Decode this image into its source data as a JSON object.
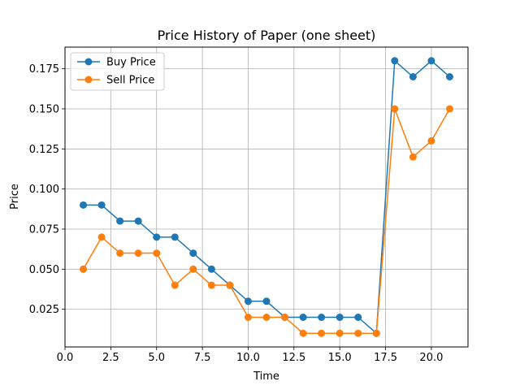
{
  "chart_data": {
    "type": "line",
    "title": "Price History of Paper (one sheet)",
    "xlabel": "Time",
    "ylabel": "Price",
    "x": [
      1,
      2,
      3,
      4,
      5,
      6,
      7,
      8,
      9,
      10,
      11,
      12,
      13,
      14,
      15,
      16,
      17,
      18,
      19,
      20,
      21
    ],
    "xlim": [
      0.0,
      22.0
    ],
    "ylim": [
      0.0015,
      0.1885
    ],
    "xticks": [
      0.0,
      2.5,
      5.0,
      7.5,
      10.0,
      12.5,
      15.0,
      17.5,
      20.0
    ],
    "xtick_labels": [
      "0.0",
      "2.5",
      "5.0",
      "7.5",
      "10.0",
      "12.5",
      "15.0",
      "17.5",
      "20.0"
    ],
    "yticks": [
      0.025,
      0.05,
      0.075,
      0.1,
      0.125,
      0.15,
      0.175
    ],
    "ytick_labels": [
      "0.025",
      "0.050",
      "0.075",
      "0.100",
      "0.125",
      "0.150",
      "0.175"
    ],
    "grid": true,
    "legend_position": "top-left",
    "series": [
      {
        "name": "Buy Price",
        "color": "#1f77b4",
        "marker": "circle",
        "values": [
          0.09,
          0.09,
          0.08,
          0.08,
          0.07,
          0.07,
          0.06,
          0.05,
          0.04,
          0.03,
          0.03,
          0.02,
          0.02,
          0.02,
          0.02,
          0.02,
          0.01,
          0.18,
          0.17,
          0.18,
          0.17
        ]
      },
      {
        "name": "Sell Price",
        "color": "#ff7f0e",
        "marker": "circle",
        "values": [
          0.05,
          0.07,
          0.06,
          0.06,
          0.06,
          0.04,
          0.05,
          0.04,
          0.04,
          0.02,
          0.02,
          0.02,
          0.01,
          0.01,
          0.01,
          0.01,
          0.01,
          0.15,
          0.12,
          0.13,
          0.15
        ]
      }
    ]
  }
}
